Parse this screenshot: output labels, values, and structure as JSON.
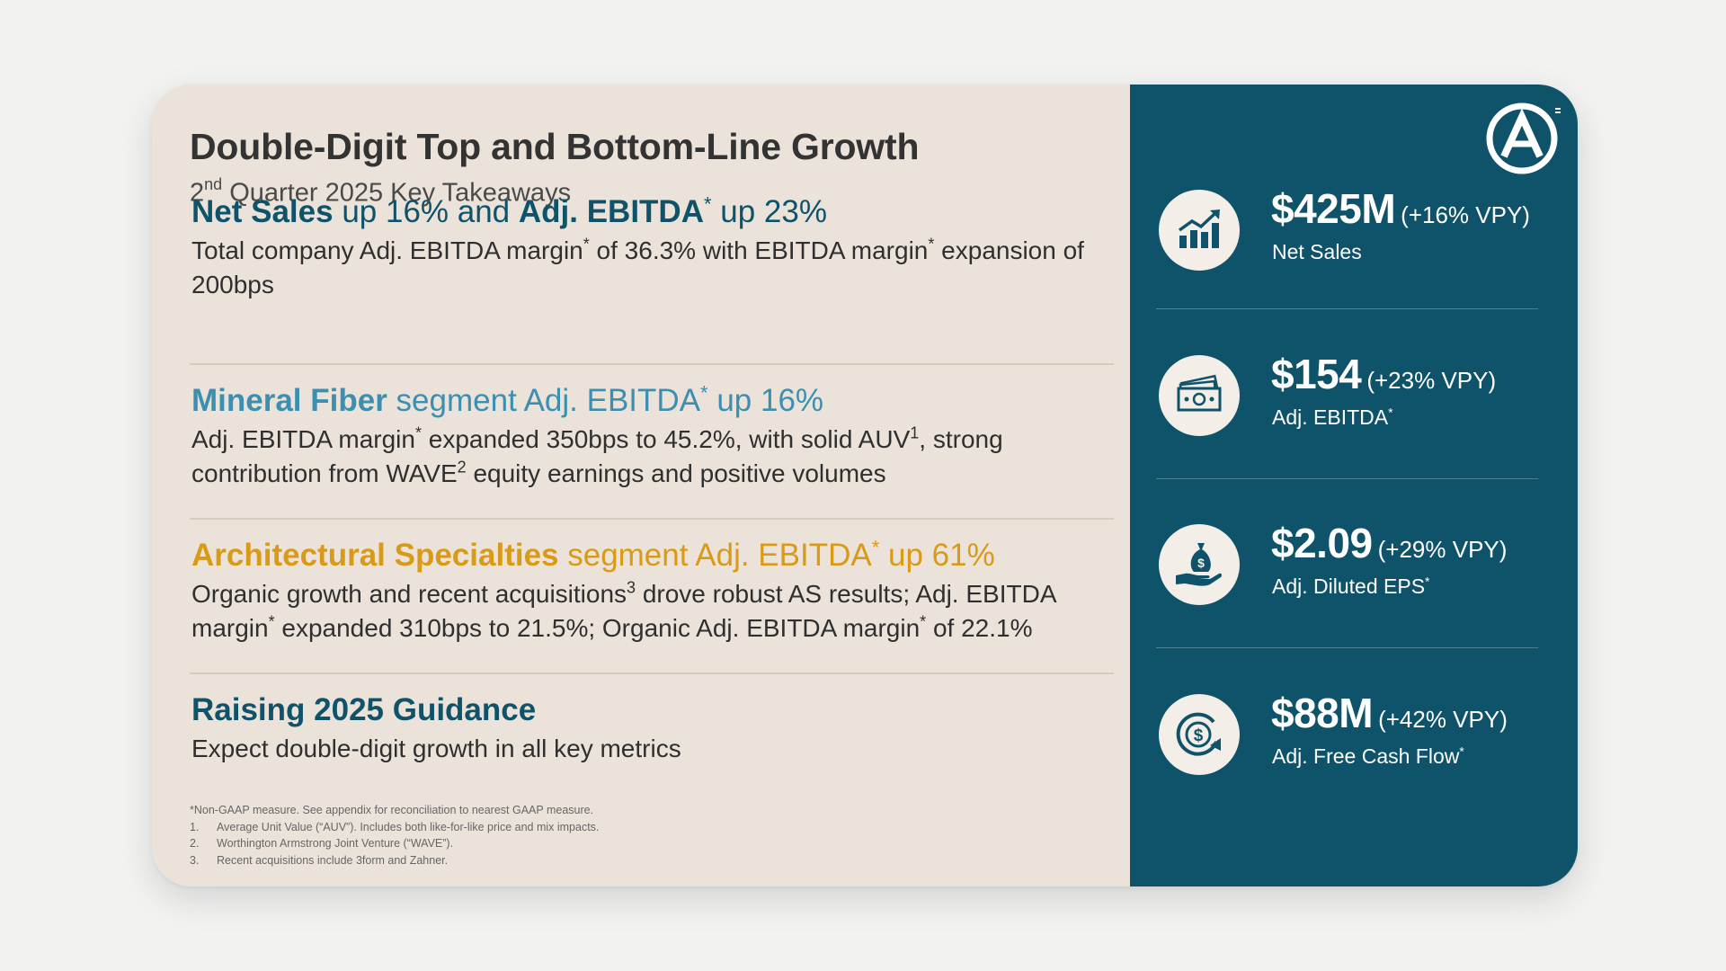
{
  "slide": {
    "title": "Double-Digit Top and Bottom-Line Growth",
    "subtitle_prefix": "2",
    "subtitle_sup": "nd",
    "subtitle_rest": " Quarter 2025 Key Takeaways"
  },
  "sections": [
    {
      "head_bold": "Net Sales",
      "head_mid": " up 16% and ",
      "head_bold2": "Adj. EBITDA",
      "head_sup": "*",
      "head_rest": " up 23%",
      "body": [
        {
          "t": "Total company Adj. EBITDA margin"
        },
        {
          "sup": "*"
        },
        {
          "t": " of 36.3% with EBITDA margin"
        },
        {
          "sup": "*"
        },
        {
          "t": " expansion of 200bps"
        }
      ],
      "color": "#0f536a"
    },
    {
      "head_bold": "Mineral Fiber",
      "head_rest": " segment Adj. EBITDA",
      "head_sup": "*",
      "head_end": " up 16%",
      "body": [
        {
          "t": "Adj. EBITDA margin"
        },
        {
          "sup": "*"
        },
        {
          "t": " expanded 350bps to 45.2%, with solid AUV"
        },
        {
          "sup": "1"
        },
        {
          "t": ", strong contribution from WAVE"
        },
        {
          "sup": "2"
        },
        {
          "t": " equity earnings and positive volumes"
        }
      ],
      "color": "#3d8fb0"
    },
    {
      "head_bold": "Architectural Specialties",
      "head_rest": " segment Adj. EBITDA",
      "head_sup": "*",
      "head_end": " up 61%",
      "body": [
        {
          "t": "Organic growth and recent acquisitions"
        },
        {
          "sup": "3"
        },
        {
          "t": " drove robust AS results; Adj. EBITDA margin"
        },
        {
          "sup": "*"
        },
        {
          "t": " expanded 310bps to 21.5%; Organic Adj. EBITDA margin"
        },
        {
          "sup": "*"
        },
        {
          "t": " of 22.1%"
        }
      ],
      "color": "#d99a16"
    },
    {
      "head_bold": "Raising 2025 Guidance",
      "body": [
        {
          "t": "Expect double-digit growth in all key metrics"
        }
      ],
      "color": "#0f536a"
    }
  ],
  "footnotes": {
    "intro": "*Non-GAAP measure. See appendix for reconciliation to nearest GAAP measure.",
    "items": [
      {
        "num": "1.",
        "text": "Average Unit Value (“AUV”). Includes both like-for-like price and mix impacts."
      },
      {
        "num": "2.",
        "text": "Worthington Armstrong Joint Venture (“WAVE”)."
      },
      {
        "num": "3.",
        "text": "Recent acquisitions include 3form and Zahner."
      }
    ]
  },
  "metrics": [
    {
      "value": "$425M",
      "vpy": "(+16% VPY)",
      "label": "Net Sales",
      "label_sup": "",
      "icon": "growth-chart-icon"
    },
    {
      "value": "$154",
      "vpy": "(+23% VPY)",
      "label": "Adj. EBITDA",
      "label_sup": "*",
      "icon": "cash-bills-icon"
    },
    {
      "value": "$2.09",
      "vpy": "(+29% VPY)",
      "label": "Adj. Diluted EPS",
      "label_sup": "*",
      "icon": "money-bag-hand-icon"
    },
    {
      "value": "$88M",
      "vpy": "(+42% VPY)",
      "label": "Adj. Free Cash Flow",
      "label_sup": "*",
      "icon": "cash-flow-cycle-icon"
    }
  ],
  "colors": {
    "panel": "#0f536a",
    "background": "#ebe3da",
    "mineral_fiber": "#3d8fb0",
    "architectural": "#d99a16",
    "title": "#333333"
  }
}
